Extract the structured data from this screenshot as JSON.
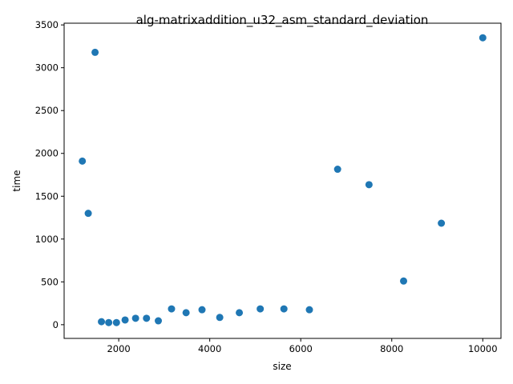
{
  "colors": {
    "marker": "#1f77b4",
    "axis": "#000000",
    "background": "#ffffff"
  },
  "chart_data": {
    "type": "scatter",
    "title": "alg-matrixaddition_u32_asm_standard_deviation",
    "xlabel": "size",
    "ylabel": "time",
    "xlim": [
      800,
      10400
    ],
    "ylim": [
      -160,
      3520
    ],
    "xticks": [
      2000,
      4000,
      6000,
      8000,
      10000
    ],
    "yticks": [
      0,
      500,
      1000,
      1500,
      2000,
      2500,
      3000,
      3500
    ],
    "grid": false,
    "legend": "none",
    "points": [
      {
        "x": 1200,
        "y": 1910
      },
      {
        "x": 1330,
        "y": 1300
      },
      {
        "x": 1480,
        "y": 3180
      },
      {
        "x": 1620,
        "y": 35
      },
      {
        "x": 1780,
        "y": 25
      },
      {
        "x": 1950,
        "y": 25
      },
      {
        "x": 2140,
        "y": 55
      },
      {
        "x": 2370,
        "y": 75
      },
      {
        "x": 2610,
        "y": 75
      },
      {
        "x": 2870,
        "y": 45
      },
      {
        "x": 3160,
        "y": 185
      },
      {
        "x": 3480,
        "y": 140
      },
      {
        "x": 3830,
        "y": 175
      },
      {
        "x": 4220,
        "y": 85
      },
      {
        "x": 4650,
        "y": 140
      },
      {
        "x": 5110,
        "y": 185
      },
      {
        "x": 5630,
        "y": 185
      },
      {
        "x": 6190,
        "y": 175
      },
      {
        "x": 6810,
        "y": 1815
      },
      {
        "x": 7500,
        "y": 1635
      },
      {
        "x": 8260,
        "y": 510
      },
      {
        "x": 9090,
        "y": 1185
      },
      {
        "x": 10000,
        "y": 3350
      }
    ]
  }
}
